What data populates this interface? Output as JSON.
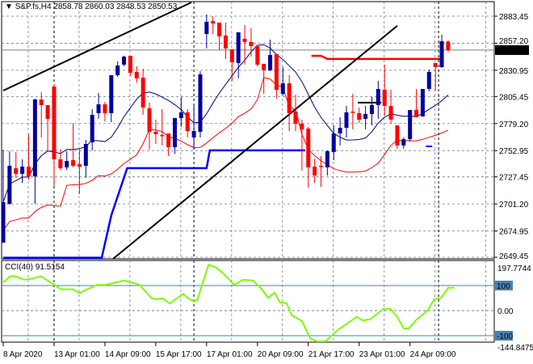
{
  "header": {
    "menu_icon": "triangle-down-icon",
    "symbol": "S&P.fs,H4",
    "open": "2858.78",
    "high": "2860.03",
    "low": "2848.53",
    "close": "2850.53"
  },
  "colors": {
    "bull": "#00008B",
    "bull_fill": "#0000A0",
    "bear": "#FF0000",
    "ma": "#000080",
    "envelope": "#FF0000",
    "step_blue": "#0000FF",
    "cci": "#7CFC00",
    "level": "#4682B4",
    "grid": "#708090",
    "price_line": "#708090",
    "trend": "#000000"
  },
  "chart_data": [
    {
      "type": "candlestick",
      "title": "S&P.fs,H4",
      "ylim": [
        2649.45,
        2883.45
      ],
      "grid": true,
      "price_ticks": [
        "2883.45",
        "2857.20",
        "2830.95",
        "2805.45",
        "2779.20",
        "2752.95",
        "2727.45",
        "2701.20",
        "2674.95",
        "2649.45"
      ],
      "current_price": "2850.53",
      "x_labels": [
        {
          "index": 0,
          "text": "8 Apr 2020"
        },
        {
          "index": 8,
          "text": "13 Apr 01:00"
        },
        {
          "index": 16,
          "text": "14 Apr 09:00"
        },
        {
          "index": 24,
          "text": "15 Apr 17:00"
        },
        {
          "index": 32,
          "text": "17 Apr 01:00"
        },
        {
          "index": 40,
          "text": "20 Apr 09:00"
        },
        {
          "index": 48,
          "text": "21 Apr 17:00"
        },
        {
          "index": 56,
          "text": "23 Apr 01:00"
        },
        {
          "index": 64,
          "text": "24 Apr 09:00"
        }
      ],
      "ohlc": [
        [
          2663.6,
          2753.9,
          2663.6,
          2702.9
        ],
        [
          2701.3,
          2752.4,
          2700.5,
          2738.2
        ],
        [
          2735.9,
          2751.6,
          2726.5,
          2730.4
        ],
        [
          2730.4,
          2744.5,
          2721.7,
          2737.4
        ],
        [
          2737.4,
          2768.9,
          2724.9,
          2728.0
        ],
        [
          2728.0,
          2803.4,
          2701.3,
          2802.6
        ],
        [
          2802.6,
          2809.7,
          2765.7,
          2797.1
        ],
        [
          2797.1,
          2797.1,
          2753.2,
          2783.8
        ],
        [
          2815.2,
          2817.5,
          2718.6,
          2744.5
        ],
        [
          2744.5,
          2753.9,
          2734.3,
          2735.9
        ],
        [
          2736.7,
          2752.4,
          2734.3,
          2742.9
        ],
        [
          2743.7,
          2779.8,
          2736.7,
          2738.2
        ],
        [
          2739.8,
          2753.9,
          2710.8,
          2737.4
        ],
        [
          2738.2,
          2763.4,
          2726.5,
          2759.4
        ],
        [
          2761.0,
          2793.2,
          2753.2,
          2787.7
        ],
        [
          2789.3,
          2808.9,
          2783.8,
          2797.9
        ],
        [
          2797.9,
          2800.3,
          2781.4,
          2789.3
        ],
        [
          2789.3,
          2826.2,
          2780.6,
          2826.2
        ],
        [
          2826.2,
          2839.5,
          2824.6,
          2835.6
        ],
        [
          2836.4,
          2845.0,
          2834.8,
          2844.2
        ],
        [
          2845.0,
          2845.0,
          2825.4,
          2828.5
        ],
        [
          2829.3,
          2834.8,
          2819.1,
          2823.0
        ],
        [
          2823.8,
          2832.5,
          2787.7,
          2794.8
        ],
        [
          2794.0,
          2799.5,
          2753.9,
          2771.2
        ],
        [
          2771.2,
          2783.0,
          2759.4,
          2768.9
        ],
        [
          2768.1,
          2793.2,
          2757.9,
          2767.3
        ],
        [
          2769.6,
          2769.6,
          2747.7,
          2756.3
        ],
        [
          2756.3,
          2784.6,
          2750.0,
          2784.6
        ],
        [
          2784.6,
          2805.0,
          2775.9,
          2790.1
        ],
        [
          2790.1,
          2793.2,
          2765.7,
          2772.0
        ],
        [
          2765.7,
          2797.1,
          2753.9,
          2772.0
        ],
        [
          2771.2,
          2830.1,
          2765.7,
          2827.0
        ],
        [
          2866.2,
          2885.1,
          2852.1,
          2878.0
        ],
        [
          2878.8,
          2883.5,
          2866.2,
          2876.4
        ],
        [
          2877.2,
          2877.2,
          2850.5,
          2863.9
        ],
        [
          2864.7,
          2877.2,
          2841.9,
          2852.1
        ],
        [
          2851.3,
          2851.3,
          2820.7,
          2838.7
        ],
        [
          2838.0,
          2867.8,
          2823.0,
          2867.8
        ],
        [
          2861.5,
          2874.9,
          2836.4,
          2858.4
        ],
        [
          2858.4,
          2871.7,
          2844.2,
          2854.4
        ],
        [
          2854.4,
          2854.4,
          2834.8,
          2836.4
        ],
        [
          2837.2,
          2837.2,
          2808.1,
          2830.9
        ],
        [
          2830.9,
          2860.7,
          2830.1,
          2845.8
        ],
        [
          2846.6,
          2846.6,
          2803.4,
          2812.0
        ],
        [
          2808.1,
          2834.0,
          2806.5,
          2818.3
        ],
        [
          2818.3,
          2826.2,
          2772.0,
          2789.3
        ],
        [
          2790.8,
          2807.3,
          2772.0,
          2779.1
        ],
        [
          2779.1,
          2783.0,
          2733.5,
          2773.6
        ],
        [
          2774.4,
          2775.9,
          2717.0,
          2736.7
        ],
        [
          2737.4,
          2745.3,
          2721.7,
          2728.8
        ],
        [
          2738.2,
          2747.7,
          2717.8,
          2737.4
        ],
        [
          2736.7,
          2753.2,
          2728.8,
          2752.4
        ],
        [
          2751.6,
          2777.5,
          2743.7,
          2769.6
        ],
        [
          2769.6,
          2785.3,
          2757.9,
          2775.1
        ],
        [
          2775.1,
          2796.3,
          2765.7,
          2790.1
        ],
        [
          2790.8,
          2808.1,
          2773.6,
          2790.1
        ],
        [
          2789.3,
          2794.8,
          2779.8,
          2783.0
        ],
        [
          2783.8,
          2796.3,
          2773.6,
          2788.5
        ],
        [
          2788.5,
          2805.0,
          2777.5,
          2797.1
        ],
        [
          2797.1,
          2820.7,
          2783.8,
          2812.8
        ],
        [
          2812.0,
          2836.4,
          2786.9,
          2796.3
        ],
        [
          2796.3,
          2812.0,
          2779.1,
          2783.0
        ],
        [
          2777.5,
          2777.5,
          2754.7,
          2757.9
        ],
        [
          2757.9,
          2765.7,
          2754.7,
          2764.1
        ],
        [
          2764.1,
          2792.4,
          2761.8,
          2792.4
        ],
        [
          2792.4,
          2812.8,
          2785.3,
          2785.3
        ],
        [
          2786.1,
          2812.8,
          2786.1,
          2812.8
        ],
        [
          2812.8,
          2831.7,
          2810.5,
          2829.3
        ],
        [
          2838.0,
          2838.0,
          2811.3,
          2834.0
        ],
        [
          2834.0,
          2865.4,
          2833.2,
          2859.2
        ],
        [
          2858.78,
          2860.03,
          2848.53,
          2850.53
        ]
      ],
      "step_line_blue": [
        [
          0,
          2649
        ],
        [
          15.5,
          2649
        ],
        [
          17,
          2690
        ],
        [
          19.5,
          2735.9
        ],
        [
          32,
          2735.9
        ],
        [
          32.5,
          2753.2
        ],
        [
          47.5,
          2753.2
        ]
      ],
      "step_line_red": [
        [
          48.5,
          2845
        ],
        [
          50,
          2845
        ],
        [
          51,
          2841.9
        ],
        [
          69,
          2841.9
        ]
      ],
      "short_blue_marker": [
        [
          66.5,
          2757.1
        ],
        [
          67.5,
          2757.1
        ]
      ],
      "trendlines": [
        {
          "from": [
            0,
            2811.2
          ],
          "to": [
            29.6,
            2896.8
          ]
        },
        {
          "from": [
            17.3,
            2648
          ],
          "to": [
            62,
            2874.1
          ]
        },
        {
          "from": [
            55.8,
            2799.5
          ],
          "to": [
            59.5,
            2799.5
          ]
        }
      ]
    },
    {
      "type": "line",
      "title": "CCI(40) 91.5154",
      "ylim": [
        -144.8475,
        197.7744
      ],
      "axis_labels": [
        "197.7744",
        "100",
        "0.00",
        "-100",
        "-144.8475"
      ],
      "levels": [
        100,
        -100
      ],
      "points": [
        [
          0,
          112
        ],
        [
          1.1,
          137
        ],
        [
          1.9,
          137
        ],
        [
          3.2,
          124
        ],
        [
          4.3,
          126
        ],
        [
          5.9,
          137
        ],
        [
          8,
          104
        ],
        [
          9.1,
          85
        ],
        [
          11,
          85
        ],
        [
          12,
          70
        ],
        [
          12.8,
          80
        ],
        [
          14.7,
          103
        ],
        [
          16,
          102
        ],
        [
          19,
          120
        ],
        [
          21.4,
          104
        ],
        [
          23.3,
          51
        ],
        [
          24.1,
          45
        ],
        [
          25.1,
          49
        ],
        [
          26.2,
          29
        ],
        [
          28.3,
          67
        ],
        [
          29.4,
          43
        ],
        [
          30.5,
          40
        ],
        [
          32.3,
          183
        ],
        [
          33.4,
          174
        ],
        [
          34.7,
          147
        ],
        [
          36.3,
          103
        ],
        [
          37.7,
          123
        ],
        [
          39.3,
          120
        ],
        [
          40.6,
          88
        ],
        [
          41.7,
          51
        ],
        [
          42.7,
          72
        ],
        [
          43.5,
          34
        ],
        [
          44.6,
          29
        ],
        [
          45.4,
          -19
        ],
        [
          47,
          -41
        ],
        [
          48.3,
          -111
        ],
        [
          49.4,
          -130
        ],
        [
          50.7,
          -130
        ],
        [
          52.6,
          -78
        ],
        [
          55.6,
          -25
        ],
        [
          56.6,
          -39
        ],
        [
          57.7,
          -35
        ],
        [
          59.8,
          7
        ],
        [
          60.9,
          7
        ],
        [
          62,
          -25
        ],
        [
          63,
          -71
        ],
        [
          63.8,
          -71
        ],
        [
          64.9,
          -39
        ],
        [
          66.8,
          2
        ],
        [
          67.8,
          45
        ],
        [
          68.9,
          51
        ],
        [
          70,
          91
        ],
        [
          71,
          91.5
        ]
      ]
    }
  ]
}
